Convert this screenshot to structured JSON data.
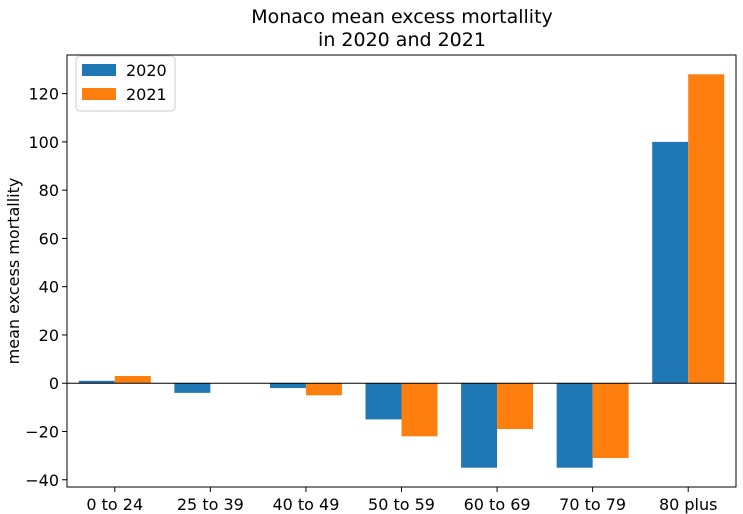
{
  "chart_data": {
    "type": "bar",
    "title_line1": "Monaco mean excess mortallity",
    "title_line2": "in 2020 and 2021",
    "xlabel": "",
    "ylabel": "mean excess mortallity",
    "categories": [
      "0 to 24",
      "25 to 39",
      "40 to 49",
      "50 to 59",
      "60 to 69",
      "70 to 79",
      "80 plus"
    ],
    "series": [
      {
        "name": "2020",
        "color": "#1f77b4",
        "values": [
          1,
          -4,
          -2,
          -15,
          -35,
          -35,
          100
        ]
      },
      {
        "name": "2021",
        "color": "#ff7f0e",
        "values": [
          3,
          0,
          -5,
          -22,
          -19,
          -31,
          128
        ]
      }
    ],
    "ylim": [
      -43,
      136
    ],
    "yticks": [
      -40,
      -20,
      0,
      20,
      40,
      60,
      80,
      100,
      120
    ],
    "zero_line": true,
    "grid": false,
    "legend_position": "top-left"
  }
}
